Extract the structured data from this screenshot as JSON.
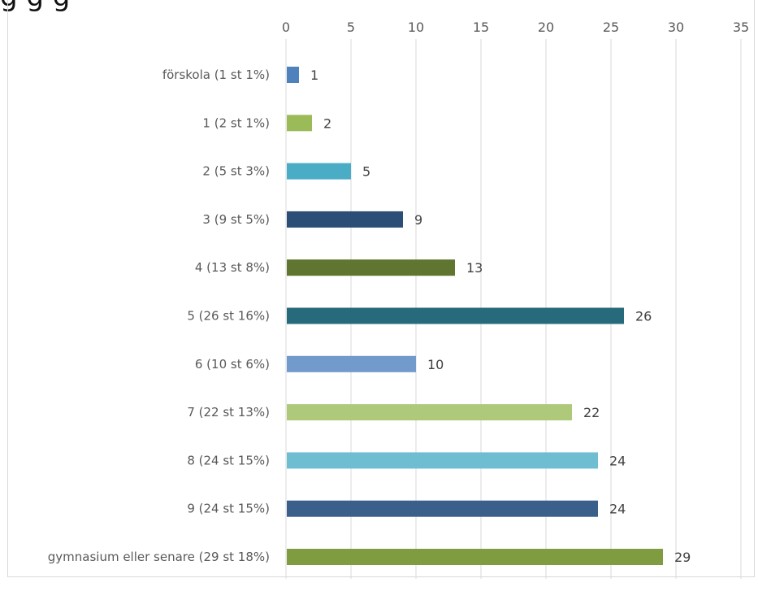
{
  "title_fragment": "g                   g          g",
  "chart_data": {
    "type": "bar",
    "orientation": "horizontal",
    "title": "",
    "xlabel": "",
    "ylabel": "",
    "xlim": [
      0,
      35
    ],
    "x_ticks": [
      0,
      5,
      10,
      15,
      20,
      25,
      30,
      35
    ],
    "x_axis_position": "top",
    "grid": true,
    "legend": "none",
    "categories": [
      "förskola (1 st 1%)",
      "1 (2 st 1%)",
      "2 (5 st 3%)",
      "3 (9 st 5%)",
      "4 (13 st 8%)",
      "5 (26 st 16%)",
      "6 (10 st 6%)",
      "7 (22 st 13%)",
      "8 (24 st 15%)",
      "9 (24 st 15%)",
      "gymnasium eller senare (29 st 18%)"
    ],
    "values": [
      1,
      2,
      5,
      9,
      13,
      26,
      10,
      22,
      24,
      24,
      29
    ],
    "colors": [
      "#4f81bd",
      "#9bbb59",
      "#4bacc6",
      "#2c4d75",
      "#5f7530",
      "#276a7c",
      "#729aca",
      "#afc97a",
      "#6fbdd1",
      "#3a5f8b",
      "#7f9d40"
    ]
  }
}
